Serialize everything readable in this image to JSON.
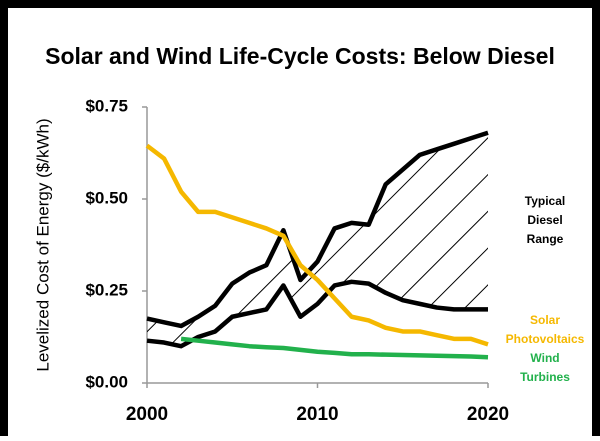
{
  "chart_data": {
    "type": "line",
    "title": "Solar and Wind Life-Cycle Costs: Below Diesel",
    "y_label": "Levelized Cost of Energy ($/kWh)",
    "x": [
      2000,
      2001,
      2002,
      2003,
      2004,
      2005,
      2006,
      2007,
      2008,
      2009,
      2010,
      2011,
      2012,
      2013,
      2014,
      2015,
      2016,
      2017,
      2018,
      2019,
      2020
    ],
    "xlim": [
      2000,
      2020
    ],
    "xticks": [
      2000,
      2010,
      2020
    ],
    "ylim": [
      0,
      0.75
    ],
    "yticks": [
      {
        "value": 0,
        "label": "$0.00"
      },
      {
        "value": 0.25,
        "label": "$0.25"
      },
      {
        "value": 0.5,
        "label": "$0.50"
      },
      {
        "value": 0.75,
        "label": "$0.75"
      }
    ],
    "band": {
      "name": "Typical Diesel Range",
      "color": "#000000",
      "low": [
        0.115,
        0.11,
        0.1,
        0.125,
        0.14,
        0.18,
        0.19,
        0.2,
        0.265,
        0.18,
        0.215,
        0.265,
        0.275,
        0.27,
        0.245,
        0.225,
        0.215,
        0.205,
        0.2,
        0.2,
        0.2
      ],
      "high": [
        0.175,
        0.165,
        0.155,
        0.18,
        0.21,
        0.27,
        0.3,
        0.32,
        0.415,
        0.28,
        0.33,
        0.42,
        0.435,
        0.43,
        0.54,
        0.58,
        0.62,
        0.635,
        0.65,
        0.665,
        0.68
      ]
    },
    "series": [
      {
        "name": "Solar Photovoltaics",
        "color": "#f5b800",
        "values": [
          0.645,
          0.61,
          0.52,
          0.465,
          0.465,
          0.45,
          0.435,
          0.42,
          0.4,
          0.32,
          0.28,
          0.23,
          0.18,
          0.17,
          0.15,
          0.14,
          0.14,
          0.13,
          0.12,
          0.12,
          0.105
        ]
      },
      {
        "name": "Wind Turbines",
        "color": "#22b14c",
        "values": [
          null,
          null,
          0.12,
          0.115,
          0.11,
          0.105,
          0.1,
          0.097,
          0.095,
          0.09,
          0.085,
          0.082,
          0.078,
          0.078,
          0.077,
          0.076,
          0.075,
          0.074,
          0.073,
          0.072,
          0.07
        ]
      }
    ]
  }
}
